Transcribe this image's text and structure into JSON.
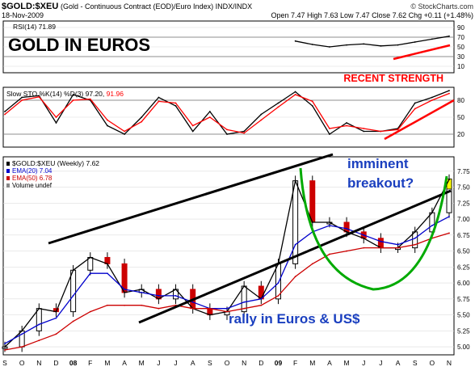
{
  "header": {
    "symbol": "$GOLD:$XEU",
    "description": "(Gold - Continuous Contract (EOD)/Euro Index)  INDX/INDX",
    "site": "© StockCharts.com",
    "date": "18-Nov-2009",
    "ohlc": "Open 7.47  High 7.63  Low 7.47  Close 7.62  Chg +0.11 (+1.48%)"
  },
  "colors": {
    "price_up": "#000000",
    "price_down": "#cc0000",
    "ema20": "#0000cc",
    "ema50": "#cc0000",
    "sto_d": "#ff0000",
    "annotation_red": "#ff0000",
    "annotation_blue": "#1a3fbf",
    "arc_green": "#00aa00",
    "highlight_yellow": "#ffff00"
  },
  "chart_data": [
    {
      "type": "line",
      "panel": "rsi",
      "legend": "RSI(14) 71.89",
      "annotation": "GOLD IN EUROS",
      "ylim": [
        0,
        100
      ],
      "y_ticks": [
        "90",
        "70",
        "50",
        "30",
        "10"
      ],
      "reference_levels": [
        70,
        30
      ],
      "x": [
        "2007-09",
        "2007-10",
        "2007-11",
        "2007-12",
        "2008-01",
        "2008-02",
        "2008-03",
        "2008-04",
        "2008-05",
        "2008-06",
        "2008-07",
        "2008-08",
        "2008-09",
        "2008-10",
        "2008-11",
        "2008-12",
        "2009-01",
        "2009-02",
        "2009-03",
        "2009-04",
        "2009-05",
        "2009-06",
        "2009-07",
        "2009-08",
        "2009-09",
        "2009-10",
        "2009-11"
      ],
      "series": [
        {
          "values": [
            null,
            null,
            null,
            null,
            null,
            null,
            null,
            null,
            null,
            null,
            null,
            null,
            null,
            null,
            null,
            null,
            null,
            62,
            55,
            50,
            54,
            56,
            52,
            54,
            60,
            66,
            72
          ]
        }
      ]
    },
    {
      "type": "line",
      "panel": "slow_stochastic",
      "legend_prefix": "Slow STO %K(14) %D(3)",
      "legend_k": "97.20",
      "legend_d": "91.96",
      "annotation": "RECENT STRENGTH",
      "ylim": [
        0,
        100
      ],
      "y_ticks": [
        "80",
        "50",
        "20"
      ],
      "reference_levels": [
        80,
        20
      ],
      "x": [
        "2007-09",
        "2007-10",
        "2007-11",
        "2007-12",
        "2008-01",
        "2008-02",
        "2008-03",
        "2008-04",
        "2008-05",
        "2008-06",
        "2008-07",
        "2008-08",
        "2008-09",
        "2008-10",
        "2008-11",
        "2008-12",
        "2009-01",
        "2009-02",
        "2009-03",
        "2009-04",
        "2009-05",
        "2009-06",
        "2009-07",
        "2009-08",
        "2009-09",
        "2009-10",
        "2009-11"
      ],
      "series": [
        {
          "values": [
            60,
            85,
            88,
            40,
            90,
            80,
            35,
            20,
            50,
            85,
            70,
            25,
            60,
            20,
            25,
            55,
            75,
            95,
            70,
            20,
            40,
            25,
            25,
            30,
            75,
            85,
            97
          ]
        },
        {
          "values": [
            55,
            80,
            86,
            50,
            80,
            82,
            45,
            25,
            42,
            78,
            75,
            35,
            50,
            28,
            22,
            45,
            68,
            90,
            78,
            30,
            35,
            30,
            25,
            28,
            65,
            80,
            92
          ]
        }
      ]
    },
    {
      "type": "line",
      "panel": "price",
      "legend": [
        "$GOLD:$XEU (Weekly) 7.62",
        "EMA(20) 7.04",
        "EMA(50) 6.78",
        "Volume undef"
      ],
      "annotations": [
        "imminent breakout?",
        "rally in Euros & US$"
      ],
      "ylim": [
        4.9,
        7.95
      ],
      "y_ticks": [
        "7.75",
        "7.50",
        "7.25",
        "7.00",
        "6.75",
        "6.50",
        "6.25",
        "6.00",
        "5.75",
        "5.50",
        "5.25",
        "5.00"
      ],
      "x_ticks": [
        "S",
        "O",
        "N",
        "D",
        "08",
        "F",
        "M",
        "A",
        "M",
        "J",
        "J",
        "A",
        "S",
        "O",
        "N",
        "D",
        "09",
        "F",
        "M",
        "A",
        "M",
        "J",
        "J",
        "A",
        "S",
        "O",
        "N"
      ],
      "x": [
        "2007-09",
        "2007-10",
        "2007-11",
        "2007-12",
        "2008-01",
        "2008-02",
        "2008-03",
        "2008-04",
        "2008-05",
        "2008-06",
        "2008-07",
        "2008-08",
        "2008-09",
        "2008-10",
        "2008-11",
        "2008-12",
        "2009-01",
        "2009-02",
        "2009-03",
        "2009-04",
        "2009-05",
        "2009-06",
        "2009-07",
        "2009-08",
        "2009-09",
        "2009-10",
        "2009-11"
      ],
      "series": [
        {
          "values": [
            5.0,
            5.25,
            5.6,
            5.55,
            6.2,
            6.4,
            6.3,
            5.85,
            5.9,
            5.75,
            5.9,
            5.6,
            5.5,
            5.55,
            5.95,
            5.75,
            6.3,
            7.6,
            6.95,
            6.95,
            6.8,
            6.7,
            6.55,
            6.55,
            6.8,
            7.1,
            7.62
          ]
        },
        {
          "values": [
            5.05,
            5.2,
            5.35,
            5.45,
            5.8,
            6.15,
            6.15,
            5.9,
            5.85,
            5.8,
            5.8,
            5.7,
            5.6,
            5.6,
            5.7,
            5.75,
            6.0,
            6.6,
            6.8,
            6.9,
            6.85,
            6.75,
            6.65,
            6.6,
            6.7,
            6.9,
            7.04
          ]
        },
        {
          "values": [
            4.95,
            5.0,
            5.1,
            5.2,
            5.4,
            5.55,
            5.65,
            5.65,
            5.65,
            5.6,
            5.65,
            5.6,
            5.6,
            5.55,
            5.6,
            5.65,
            5.8,
            6.1,
            6.3,
            6.45,
            6.5,
            6.55,
            6.55,
            6.55,
            6.6,
            6.7,
            6.78
          ]
        }
      ]
    }
  ]
}
